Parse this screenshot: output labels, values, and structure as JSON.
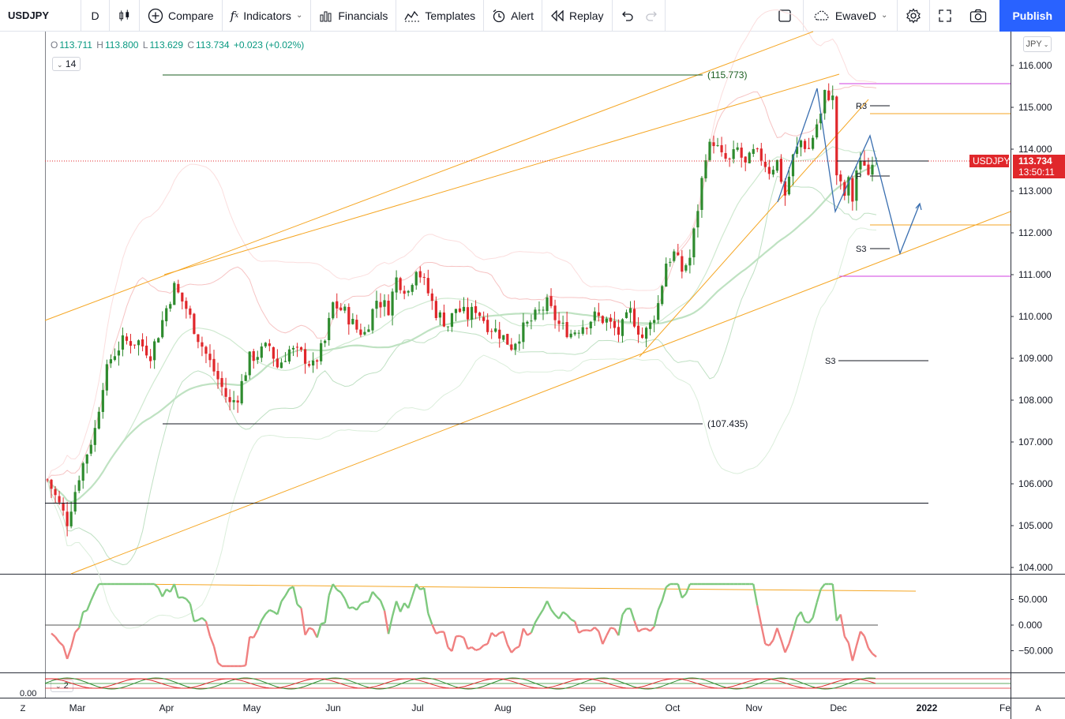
{
  "toolbar": {
    "symbol": "USDJPY",
    "interval": "D",
    "compare": "Compare",
    "indicators": "Indicators",
    "financials": "Financials",
    "templates": "Templates",
    "alert": "Alert",
    "replay": "Replay",
    "layout_name": "EwaveD",
    "publish": "Publish"
  },
  "ohlc": {
    "o_label": "O",
    "o": "113.711",
    "h_label": "H",
    "h": "113.800",
    "l_label": "L",
    "l": "113.629",
    "c_label": "C",
    "c": "113.734",
    "chg": "+0.023 (+0.02%)"
  },
  "legend_pills": {
    "main": "14",
    "osc": "2"
  },
  "currency": "JPY",
  "price_axis": [
    "116.000",
    "115.000",
    "114.000",
    "113.000",
    "112.000",
    "111.000",
    "110.000",
    "109.000",
    "108.000",
    "107.000",
    "106.000",
    "105.000",
    "104.000"
  ],
  "osc_axis": [
    "50.000",
    "0.000",
    "−50.000"
  ],
  "osc2_axis": [
    "0.00"
  ],
  "time_axis": [
    "Mar",
    "Apr",
    "May",
    "Jun",
    "Jul",
    "Aug",
    "Sep",
    "Oct",
    "Nov",
    "Dec",
    "2022",
    "Fe"
  ],
  "last_price": {
    "symbol": "USDJPY",
    "price": "113.734",
    "countdown": "13:50:11"
  },
  "annotations": {
    "high_label": "(115.773)",
    "low_label": "(107.435)",
    "r3": "R3",
    "p": "P",
    "s3_a": "S3",
    "s3_b": "S3"
  },
  "scale_buttons": {
    "left": "Z",
    "right": "A"
  },
  "colors": {
    "up": "#2e8b2e",
    "down": "#e0272b",
    "channel": "#f5a623",
    "wave": "#3a6fb0",
    "accent": "#2962ff",
    "magenta": "#d23fe0",
    "sma": "#a9d8ae",
    "bb": "#f4bcbc"
  },
  "chart_data": {
    "type": "candlestick",
    "symbol": "USDJPY",
    "interval": "D",
    "ylim": [
      104.0,
      116.2
    ],
    "last": 113.734,
    "horizontal_levels": [
      115.773,
      107.435,
      105.55,
      115.56,
      110.95,
      114.85,
      112.2,
      113.77
    ],
    "approx_closes": [
      {
        "month": "Mar",
        "start": 106.1,
        "end": 109.8
      },
      {
        "month": "Apr",
        "start": 110.6,
        "end": 108.0
      },
      {
        "month": "May",
        "start": 107.9,
        "end": 109.5
      },
      {
        "month": "Jun",
        "start": 109.4,
        "end": 110.6
      },
      {
        "month": "Jul",
        "start": 111.2,
        "end": 109.9
      },
      {
        "month": "Aug",
        "start": 109.4,
        "end": 109.9
      },
      {
        "month": "Sep",
        "start": 110.0,
        "end": 111.5
      },
      {
        "month": "Oct",
        "start": 111.3,
        "end": 113.8
      },
      {
        "month": "Nov",
        "start": 114.0,
        "end": 113.0
      },
      {
        "month": "Dec",
        "start": 112.8,
        "end": 113.734
      }
    ]
  }
}
